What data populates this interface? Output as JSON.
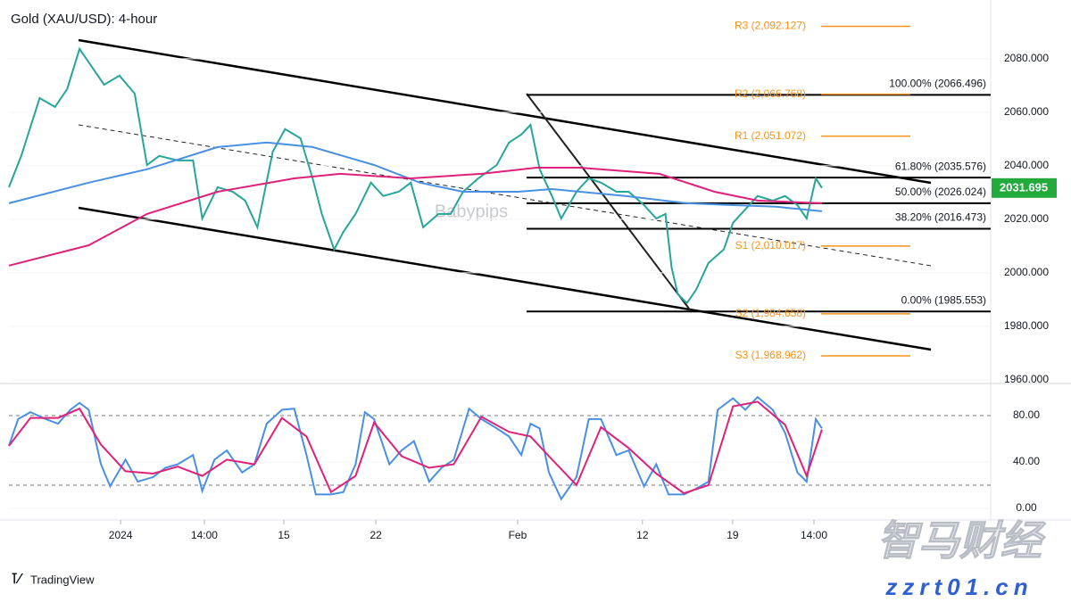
{
  "chart_data": [
    {
      "type": "line",
      "title": "Gold (XAU/USD): 4-hour",
      "watermark": "Babypips",
      "xlim": [
        0,
        320
      ],
      "ylim": [
        1959.3,
        2100.3
      ],
      "yticks": [
        {
          "value": 1960,
          "label": "1960.000"
        },
        {
          "value": 1980,
          "label": "1980.000"
        },
        {
          "value": 2000,
          "label": "2000.000"
        },
        {
          "value": 2020,
          "label": "2020.000"
        },
        {
          "value": 2040,
          "label": "2040.000"
        },
        {
          "value": 2060,
          "label": "2060.000"
        },
        {
          "value": 2080,
          "label": "2080.000"
        }
      ],
      "series": [
        {
          "color": "#26a69a",
          "x": [
            0,
            4,
            10,
            15,
            19,
            23,
            26,
            31,
            36,
            41,
            45,
            49,
            55,
            60,
            63,
            68,
            73,
            77,
            81,
            86,
            90,
            95,
            99,
            102,
            106,
            109,
            113,
            118,
            122,
            127,
            131,
            135,
            140,
            144,
            148,
            153,
            159,
            163,
            167,
            170,
            173,
            177,
            180,
            185,
            189,
            193,
            198,
            202,
            207,
            211,
            214,
            216,
            218,
            221,
            224,
            228,
            233,
            236,
            240,
            244,
            249,
            253,
            257,
            260,
            263,
            265
          ],
          "values": [
            2032,
            2043.7,
            2065.3,
            2062,
            2068.7,
            2083.7,
            2078.7,
            2070.3,
            2073.7,
            2067,
            2040.3,
            2043.7,
            2042,
            2042,
            2020.3,
            2032,
            2030.3,
            2027,
            2017,
            2045.3,
            2053.7,
            2050.3,
            2035.3,
            2022,
            2008.7,
            2015.3,
            2022,
            2033.7,
            2028.7,
            2030.3,
            2033.7,
            2017,
            2022,
            2022,
            2030.3,
            2035.3,
            2040.3,
            2048.7,
            2051.7,
            2055.3,
            2038.7,
            2028.7,
            2020.3,
            2030.3,
            2035.3,
            2033.7,
            2030.3,
            2030.3,
            2025.3,
            2020.3,
            2022,
            2002,
            1992,
            1988.7,
            1993.7,
            2003.7,
            2008.7,
            2018.7,
            2023.7,
            2028.7,
            2027,
            2028.7,
            2025.3,
            2020.3,
            2035.3,
            2031.7
          ]
        },
        {
          "color": "#4a90e2",
          "x": [
            0,
            26,
            45,
            68,
            84,
            99,
            119,
            134,
            148,
            166,
            177,
            201,
            221,
            236,
            250,
            265
          ],
          "values": [
            2026,
            2033.7,
            2038.7,
            2047,
            2048.7,
            2047,
            2040.3,
            2033.7,
            2030.3,
            2030.3,
            2031.3,
            2028.7,
            2026,
            2025.3,
            2024.7,
            2023
          ]
        },
        {
          "color": "#e0217a",
          "x": [
            0,
            26,
            45,
            68,
            93,
            108,
            131,
            154,
            172,
            186,
            212,
            230,
            244,
            265
          ],
          "values": [
            2002.7,
            2010.3,
            2022,
            2030.3,
            2035.3,
            2037,
            2035.3,
            2037,
            2039.3,
            2039.3,
            2037,
            2030.3,
            2027,
            2026
          ]
        }
      ],
      "pivot_levels": [
        {
          "label": "R3 (2,092.127)",
          "value": 2092.127
        },
        {
          "label": "R2 (2,066.768)",
          "value": 2066.768
        },
        {
          "label": "R1 (2,051.072)",
          "value": 2051.072
        },
        {
          "label": "S1 (2,010.017)",
          "value": 2010.017
        },
        {
          "label": "S2 (1,984.658)",
          "value": 1984.658
        },
        {
          "label": "S3 (1,968.962)",
          "value": 1968.962
        }
      ],
      "pivot_color": "#f7931a",
      "fib_levels": [
        {
          "label": "100.00% (2066.496)",
          "value": 2066.496
        },
        {
          "label": "61.80% (2035.576)",
          "value": 2035.576
        },
        {
          "label": "50.00% (2026.024)",
          "value": 2026.024
        },
        {
          "label": "38.20% (2016.473)",
          "value": 2016.473
        },
        {
          "label": "0.00% (1985.553)",
          "value": 1985.553
        }
      ],
      "last_price": 2031.695,
      "last_price_color": "#22ab3c"
    },
    {
      "type": "line",
      "xlim": [
        0,
        320
      ],
      "ylim": [
        -6.2,
        106.2
      ],
      "yticks": [
        {
          "value": 0,
          "label": "0.00"
        },
        {
          "value": 40,
          "label": "40.00"
        },
        {
          "value": 80,
          "label": "80.00"
        }
      ],
      "levels": [
        20,
        80
      ],
      "xticks": [
        {
          "value": 36.4,
          "label": "2024"
        },
        {
          "value": 63.7,
          "label": "14:00"
        },
        {
          "value": 89.6,
          "label": "15"
        },
        {
          "value": 119.6,
          "label": "22"
        },
        {
          "value": 165.8,
          "label": "Feb"
        },
        {
          "value": 206.5,
          "label": "12"
        },
        {
          "value": 235.9,
          "label": "19"
        },
        {
          "value": 262.4,
          "label": "14:00"
        }
      ],
      "series": [
        {
          "color": "#4a90e2",
          "x": [
            0,
            3,
            7,
            12,
            16,
            20,
            23,
            26,
            30,
            33,
            38,
            42,
            47,
            51,
            55,
            60,
            63,
            67,
            71,
            76,
            80,
            84,
            89,
            93,
            97,
            100,
            105,
            109,
            113,
            116,
            119,
            124,
            128,
            132,
            137,
            141,
            145,
            150,
            154,
            159,
            163,
            167,
            170,
            173,
            176,
            180,
            185,
            189,
            193,
            198,
            202,
            207,
            211,
            215,
            220,
            224,
            228,
            231,
            236,
            240,
            244,
            249,
            253,
            257,
            260,
            263,
            265
          ],
          "values": [
            54,
            77,
            83,
            77,
            73,
            85,
            91,
            85,
            38,
            19,
            42,
            23,
            27,
            35,
            38,
            46,
            15,
            42,
            50,
            31,
            38,
            73,
            85,
            86,
            46,
            12,
            12,
            14,
            38,
            83,
            77,
            38,
            50,
            58,
            23,
            35,
            42,
            86,
            77,
            69,
            62,
            46,
            73,
            69,
            31,
            8,
            27,
            77,
            77,
            46,
            50,
            19,
            38,
            12,
            12,
            17,
            23,
            85,
            95,
            85,
            96,
            85,
            65,
            31,
            23,
            77,
            69
          ]
        },
        {
          "color": "#e0217a",
          "x": [
            0,
            7,
            16,
            23,
            30,
            38,
            47,
            55,
            63,
            71,
            80,
            89,
            97,
            105,
            113,
            119,
            128,
            137,
            145,
            154,
            163,
            170,
            176,
            185,
            193,
            202,
            211,
            220,
            228,
            236,
            244,
            253,
            260,
            265
          ],
          "values": [
            54,
            78,
            78,
            86,
            55,
            32,
            30,
            36,
            28,
            42,
            38,
            78,
            62,
            14,
            28,
            74,
            45,
            35,
            38,
            79,
            66,
            62,
            45,
            20,
            70,
            52,
            30,
            13,
            20,
            88,
            92,
            72,
            28,
            68
          ]
        }
      ]
    }
  ],
  "footer": {
    "brand": "TradingView",
    "site_name": "智马财经",
    "site_url": "zzrt01.cn"
  }
}
